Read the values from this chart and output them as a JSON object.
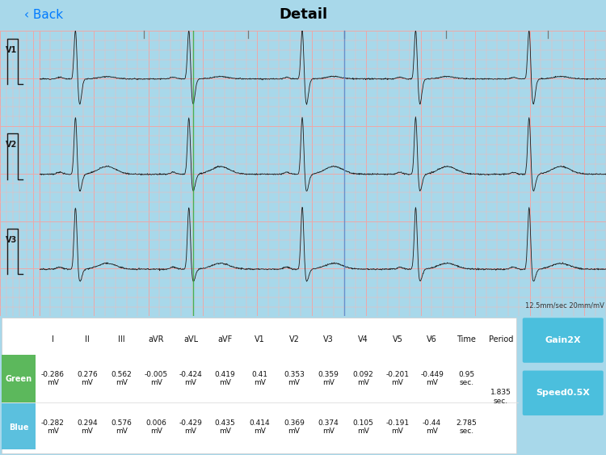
{
  "title": "Detail",
  "back_text": "‹ Back",
  "nav_bg": "#f0f8ff",
  "bg_color": "#a8d8ea",
  "ecg_bg_color": "#fdeaea",
  "grid_minor_color": "#f5b8b8",
  "grid_major_color": "#eda8a8",
  "green_line_x": 0.272,
  "blue_line_x": 0.538,
  "leads": [
    "V1",
    "V2",
    "V3"
  ],
  "scale_text": "12.5mm/sec 20mm/mV",
  "table_headers": [
    "I",
    "II",
    "III",
    "aVR",
    "aVL",
    "aVF",
    "V1",
    "V2",
    "V3",
    "V4",
    "V5",
    "V6",
    "Time",
    "Period"
  ],
  "green_row_label": "Green",
  "green_row_color": "#5cb85c",
  "green_values": [
    "-0.286\nmV",
    "0.276\nmV",
    "0.562\nmV",
    "-0.005\nmV",
    "-0.424\nmV",
    "0.419\nmV",
    "0.41\nmV",
    "0.353\nmV",
    "0.359\nmV",
    "0.092\nmV",
    "-0.201\nmV",
    "-0.449\nmV",
    "0.95\nsec."
  ],
  "blue_row_label": "Blue",
  "blue_row_color": "#5bc0de",
  "blue_values": [
    "-0.282\nmV",
    "0.294\nmV",
    "0.576\nmV",
    "0.006\nmV",
    "-0.429\nmV",
    "0.435\nmV",
    "0.414\nmV",
    "0.369\nmV",
    "0.374\nmV",
    "0.105\nmV",
    "-0.191\nmV",
    "-0.44\nmV",
    "2.785\nsec."
  ],
  "period_value": "1.835\nsec.",
  "btn_gain": "Gain2X",
  "btn_speed": "Speed0.5X",
  "btn_color": "#4bbfdd"
}
